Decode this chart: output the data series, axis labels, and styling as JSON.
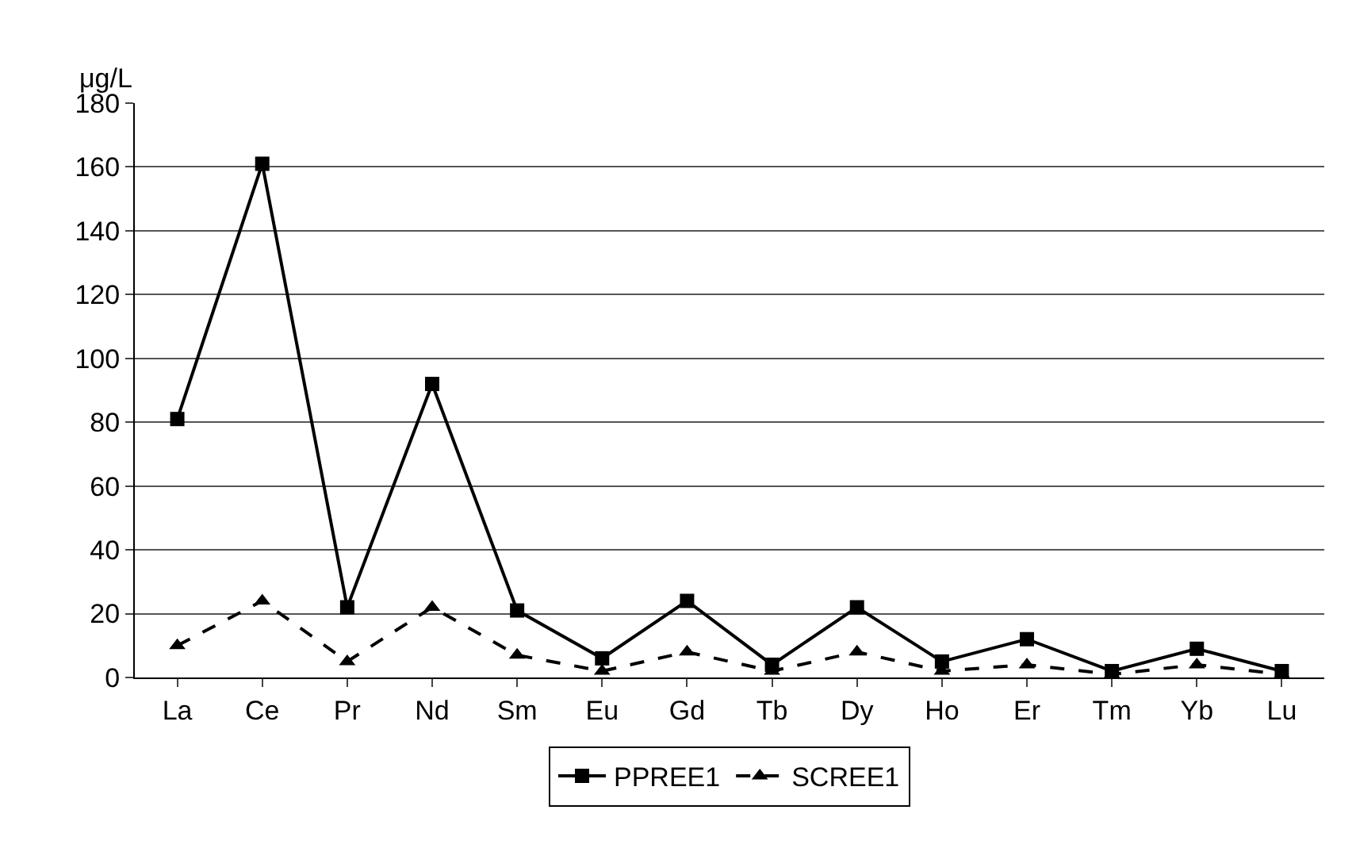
{
  "chart_data": {
    "type": "line",
    "ylabel": "μg/L",
    "categories": [
      "La",
      "Ce",
      "Pr",
      "Nd",
      "Sm",
      "Eu",
      "Gd",
      "Tb",
      "Dy",
      "Ho",
      "Er",
      "Tm",
      "Yb",
      "Lu"
    ],
    "series": [
      {
        "name": "PPREE1",
        "color": "#000000",
        "marker": "square",
        "line_style": "solid",
        "values": [
          81,
          161,
          22,
          92,
          21,
          6,
          24,
          4,
          22,
          5,
          12,
          2,
          9,
          2
        ]
      },
      {
        "name": "SCREE1",
        "color": "#000000",
        "marker": "triangle",
        "line_style": "dashed",
        "values": [
          10,
          24,
          5,
          22,
          7,
          2,
          8,
          2,
          8,
          2,
          4,
          1,
          4,
          1
        ]
      }
    ],
    "ylim": [
      0,
      180
    ],
    "yticks": [
      0,
      20,
      40,
      60,
      80,
      100,
      120,
      140,
      160,
      180
    ],
    "grid": "y",
    "legend": "bottom"
  }
}
